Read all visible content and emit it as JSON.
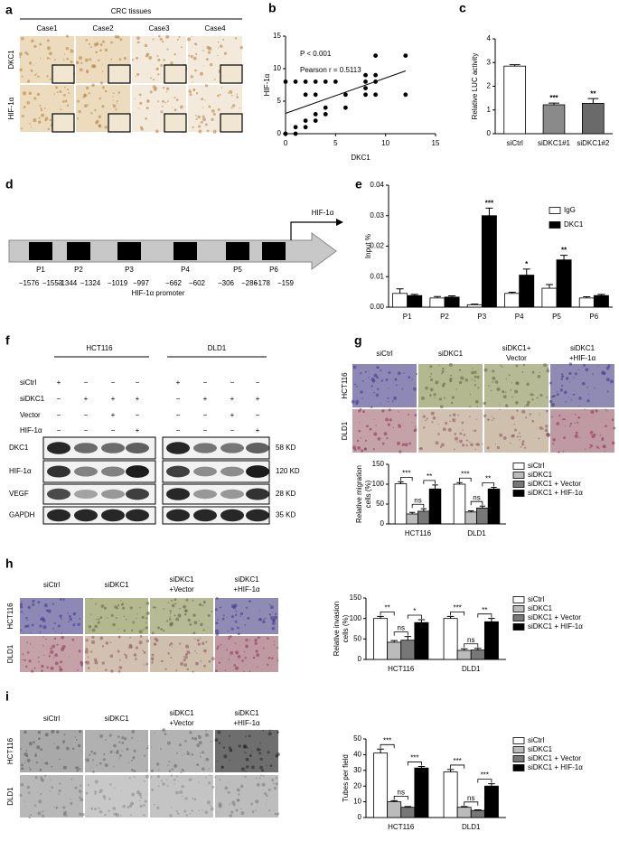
{
  "panel_labels": [
    "a",
    "b",
    "c",
    "d",
    "e",
    "f",
    "g",
    "h",
    "i"
  ],
  "panel_a": {
    "title": "CRC tissues",
    "columns": [
      "Case1",
      "Case2",
      "Case3",
      "Case4"
    ],
    "rows": [
      "DKC1",
      "HIF-1α"
    ]
  },
  "panel_d": {
    "gene_label": "HIF-1α",
    "promoter_label": "HIF-1α promoter",
    "elements": [
      {
        "name": "P1",
        "start": "−1576",
        "end": "−1553"
      },
      {
        "name": "P2",
        "start": "−1344",
        "end": "−1324"
      },
      {
        "name": "P3",
        "start": "−1019",
        "end": "−997"
      },
      {
        "name": "P4",
        "start": "−662",
        "end": "−602"
      },
      {
        "name": "P5",
        "start": "−306",
        "end": "−286"
      },
      {
        "name": "P6",
        "start": "−178",
        "end": "−159"
      }
    ]
  },
  "panel_f": {
    "cell_lines": [
      "HCT116",
      "DLD1"
    ],
    "conditions": [
      {
        "name": "siCtrl",
        "signs": [
          "+",
          "−",
          "−",
          "−",
          "+",
          "−",
          "−",
          "−"
        ]
      },
      {
        "name": "siDKC1",
        "signs": [
          "−",
          "+",
          "+",
          "+",
          "−",
          "+",
          "+",
          "+"
        ]
      },
      {
        "name": "Vector",
        "signs": [
          "−",
          "−",
          "+",
          "−",
          "−",
          "−",
          "+",
          "−"
        ]
      },
      {
        "name": "HIF-1α",
        "signs": [
          "−",
          "−",
          "−",
          "+",
          "−",
          "−",
          "−",
          "+"
        ]
      }
    ],
    "proteins": [
      {
        "name": "DKC1",
        "size": "58 KD"
      },
      {
        "name": "HIF-1α",
        "size": "120 KD"
      },
      {
        "name": "VEGF",
        "size": "28 KD"
      },
      {
        "name": "GAPDH",
        "size": "35 KD"
      }
    ]
  },
  "panel_g_images": {
    "columns": [
      [
        "siCtrl"
      ],
      [
        "siDKC1"
      ],
      [
        "siDKC1+",
        "Vector"
      ],
      [
        "siDKC1",
        "+HIF-1α"
      ]
    ],
    "rows": [
      "HCT116",
      "DLD1"
    ]
  },
  "panel_h_images": {
    "columns": [
      [
        "siCtrl"
      ],
      [
        "siDKC1"
      ],
      [
        "siDKC1",
        "+Vector"
      ],
      [
        "siDKC1",
        "+HIF-1α"
      ]
    ],
    "rows": [
      "HCT116",
      "DLD1"
    ]
  },
  "panel_i_images": {
    "columns": [
      [
        "siCtrl"
      ],
      [
        "siDKC1"
      ],
      [
        "siDKC1",
        "+Vector"
      ],
      [
        "siDKC1",
        "+HIF-1α"
      ]
    ],
    "rows": [
      "HCT116",
      "DLD1"
    ]
  },
  "chart_data": [
    {
      "type": "scatter",
      "xlabel": "DKC1",
      "ylabel": "HIF-1α",
      "annotations": [
        "P < 0.001",
        "Pearson r = 0.5113"
      ],
      "x": [
        0,
        1,
        1,
        2,
        2,
        3,
        3,
        4,
        4,
        0,
        1,
        2,
        3,
        4,
        5,
        8,
        9,
        2,
        3,
        6,
        6,
        8,
        8,
        8,
        9,
        9,
        9,
        12,
        12
      ],
      "y": [
        0,
        0,
        1,
        1,
        2,
        2,
        3,
        3,
        4,
        8,
        8,
        8,
        8,
        8,
        8,
        8,
        8,
        6,
        6,
        4,
        6,
        6,
        7,
        9,
        9,
        12,
        6,
        12,
        6
      ],
      "color": "#000000",
      "fit_line": true,
      "xlim": [
        0,
        15
      ],
      "ylim": [
        0,
        15
      ],
      "xticks": [
        0,
        5,
        10,
        15
      ],
      "yticks": [
        0,
        5,
        10,
        15
      ]
    },
    {
      "type": "bar",
      "ylabel": "Relative LUC activity",
      "categories": [
        "siCtrl",
        "siDKC1#1",
        "siDKC1#2"
      ],
      "values": [
        2.85,
        1.22,
        1.28
      ],
      "errors": [
        0.06,
        0.07,
        0.2
      ],
      "colors": [
        "#ffffff",
        "#8a8a8a",
        "#6a6a6a"
      ],
      "annotations": [
        null,
        "***",
        "**"
      ],
      "ylim": [
        0,
        4
      ],
      "yticks": [
        0,
        1,
        2,
        3,
        4
      ]
    },
    {
      "type": "bar",
      "ylabel": "Input %",
      "categories": [
        "P1",
        "P2",
        "P3",
        "P4",
        "P5",
        "P6"
      ],
      "series": [
        {
          "name": "IgG",
          "color": "#ffffff",
          "values": [
            0.0045,
            0.003,
            0.0008,
            0.0045,
            0.0062,
            0.003
          ],
          "errors": [
            0.0015,
            0.0005,
            0.0002,
            0.0004,
            0.0012,
            0.0004
          ]
        },
        {
          "name": "DKC1",
          "color": "#000000",
          "values": [
            0.0038,
            0.0033,
            0.03,
            0.0105,
            0.0155,
            0.0038
          ],
          "errors": [
            0.0004,
            0.0004,
            0.0025,
            0.002,
            0.0015,
            0.0004
          ],
          "annotations": [
            null,
            null,
            "***",
            "*",
            "**",
            null
          ]
        }
      ],
      "legend": "top-right",
      "ylim": [
        0,
        0.04
      ],
      "yticks": [
        {
          "value": 0,
          "label": "0.00"
        },
        {
          "value": 0.01,
          "label": "0.01"
        },
        {
          "value": 0.02,
          "label": "0.02"
        },
        {
          "value": 0.03,
          "label": "0.03"
        },
        {
          "value": 0.04,
          "label": "0.04"
        }
      ]
    },
    {
      "type": "bar",
      "ylabel": [
        "Relative migration",
        "cells (%)"
      ],
      "categories": [
        "HCT116",
        "DLD1"
      ],
      "series": [
        {
          "name": "siCtrl",
          "color": "#ffffff",
          "values": [
            101,
            100
          ],
          "errors": [
            5,
            4
          ]
        },
        {
          "name": "siDKC1",
          "color": "#bbbbbb",
          "values": [
            25,
            30
          ],
          "errors": [
            4,
            3
          ]
        },
        {
          "name": "siDKC1 + Vector",
          "color": "#777777",
          "values": [
            32,
            40
          ],
          "errors": [
            6,
            5
          ]
        },
        {
          "name": "siDKC1 + HIF-1α",
          "color": "#000000",
          "values": [
            88,
            88
          ],
          "errors": [
            10,
            4
          ]
        }
      ],
      "significance": [
        [
          "***",
          "ns",
          "**"
        ],
        [
          "***",
          "ns",
          "**"
        ]
      ],
      "legend": "right",
      "ylim": [
        0,
        150
      ],
      "yticks": [
        0,
        50,
        100,
        150
      ]
    },
    {
      "type": "bar",
      "ylabel": [
        "Relative invasion",
        "cells (%)"
      ],
      "categories": [
        "HCT116",
        "DLD1"
      ],
      "series": [
        {
          "name": "siCtrl",
          "color": "#ffffff",
          "values": [
            100,
            100
          ],
          "errors": [
            5,
            5
          ]
        },
        {
          "name": "siDKC1",
          "color": "#bbbbbb",
          "values": [
            42,
            22
          ],
          "errors": [
            4,
            4
          ]
        },
        {
          "name": "siDKC1 + Vector",
          "color": "#777777",
          "values": [
            47,
            23
          ],
          "errors": [
            9,
            4
          ]
        },
        {
          "name": "siDKC1 + HIF-1α",
          "color": "#000000",
          "values": [
            90,
            92
          ],
          "errors": [
            7,
            8
          ]
        }
      ],
      "significance": [
        [
          "**",
          "ns",
          "*"
        ],
        [
          "***",
          "ns",
          "**"
        ]
      ],
      "legend": "right",
      "ylim": [
        0,
        150
      ],
      "yticks": [
        0,
        50,
        100,
        150
      ]
    },
    {
      "type": "bar",
      "ylabel": "Tubes per field",
      "categories": [
        "HCT116",
        "DLD1"
      ],
      "series": [
        {
          "name": "siCtrl",
          "color": "#ffffff",
          "values": [
            41,
            29
          ],
          "errors": [
            2.5,
            1.5
          ]
        },
        {
          "name": "siDKC1",
          "color": "#bbbbbb",
          "values": [
            10,
            6.5
          ],
          "errors": [
            0.7,
            0.5
          ]
        },
        {
          "name": "siDKC1 + Vector",
          "color": "#777777",
          "values": [
            6.5,
            4.5
          ],
          "errors": [
            0.5,
            0.4
          ]
        },
        {
          "name": "siDKC1 + HIF-1α",
          "color": "#000000",
          "values": [
            31.5,
            20
          ],
          "errors": [
            1,
            1.5
          ]
        }
      ],
      "significance": [
        [
          "***",
          "ns",
          "***"
        ],
        [
          "***",
          "ns",
          "***"
        ]
      ],
      "legend": "right",
      "ylim": [
        0,
        50
      ],
      "yticks": [
        0,
        10,
        20,
        30,
        40,
        50
      ]
    }
  ]
}
